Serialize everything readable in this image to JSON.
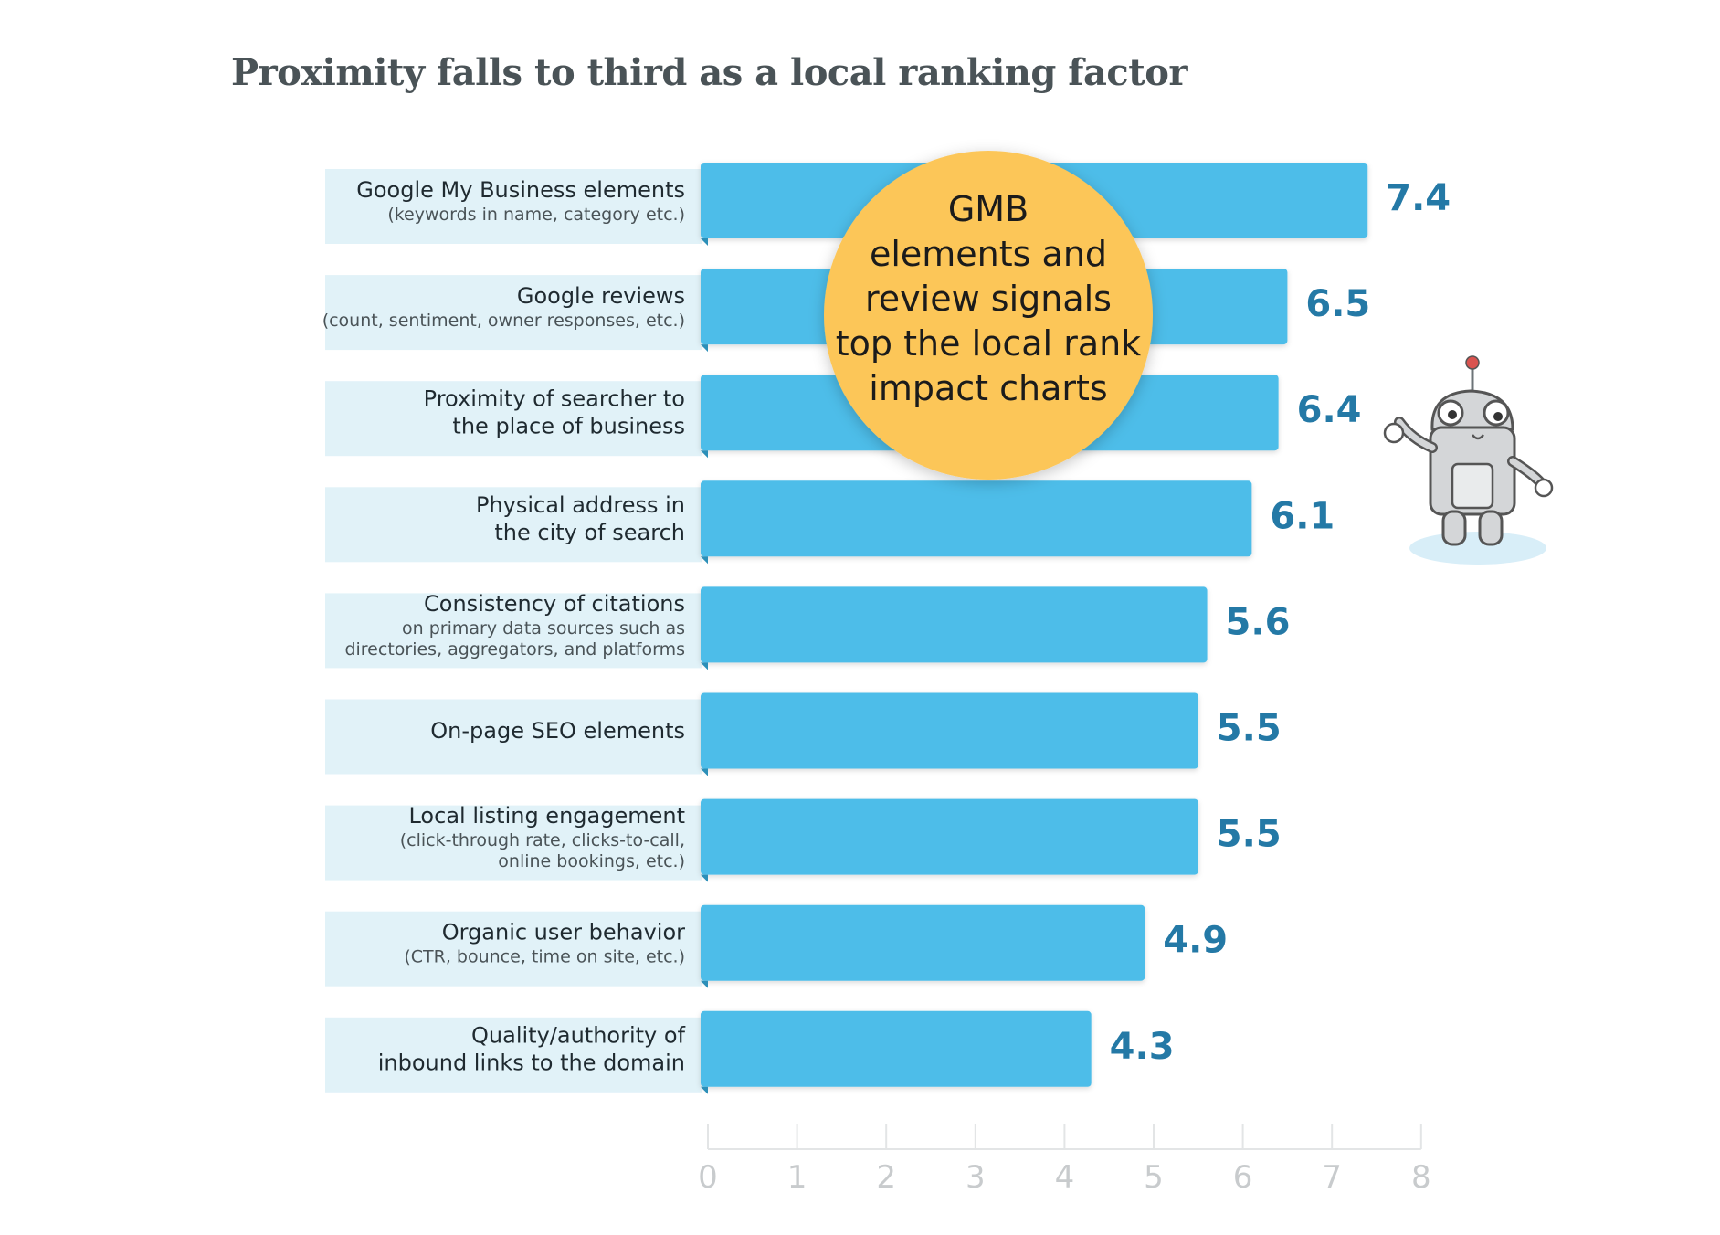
{
  "page": {
    "title": "Proximity falls to third as a local ranking factor"
  },
  "colors": {
    "bar": "#4dbde9",
    "label_panel": "#e1f2f8",
    "value_text": "#2479a6",
    "callout_fill": "#fcc659",
    "axis_text": "#c8cbcd",
    "title_text": "#4a5357"
  },
  "callout": {
    "lines": [
      "GMB",
      "elements and",
      "review signals",
      "top the local rank",
      "impact charts"
    ]
  },
  "mascot_icon": "robot-mascot-icon",
  "chart_data": {
    "type": "bar",
    "orientation": "horizontal",
    "title": "Proximity falls to third as a local ranking factor",
    "xlabel": "",
    "ylabel": "",
    "xlim": [
      0,
      8
    ],
    "x_ticks": [
      "0",
      "1",
      "2",
      "3",
      "4",
      "5",
      "6",
      "7",
      "8"
    ],
    "grid": false,
    "categories": [
      {
        "main": [
          "Google My Business elements"
        ],
        "sub": [
          "(keywords in name, category etc.)"
        ]
      },
      {
        "main": [
          "Google reviews"
        ],
        "sub": [
          "(count, sentiment, owner responses, etc.)"
        ]
      },
      {
        "main": [
          "Proximity of searcher to",
          "the place of business"
        ],
        "sub": []
      },
      {
        "main": [
          "Physical address in",
          "the city of search"
        ],
        "sub": []
      },
      {
        "main": [
          "Consistency of citations"
        ],
        "sub": [
          "on primary data sources such as",
          "directories, aggregators, and platforms"
        ]
      },
      {
        "main": [
          "On-page SEO elements"
        ],
        "sub": []
      },
      {
        "main": [
          "Local listing engagement"
        ],
        "sub": [
          "(click-through rate, clicks-to-call,",
          "online bookings, etc.)"
        ]
      },
      {
        "main": [
          "Organic user behavior"
        ],
        "sub": [
          "(CTR, bounce, time on site, etc.)"
        ]
      },
      {
        "main": [
          "Quality/authority of",
          "inbound links to the domain"
        ],
        "sub": []
      }
    ],
    "values": [
      7.4,
      6.5,
      6.4,
      6.1,
      5.6,
      5.5,
      5.5,
      4.9,
      4.3
    ],
    "value_labels": [
      "7.4",
      "6.5",
      "6.4",
      "6.1",
      "5.6",
      "5.5",
      "5.5",
      "4.9",
      "4.3"
    ]
  }
}
